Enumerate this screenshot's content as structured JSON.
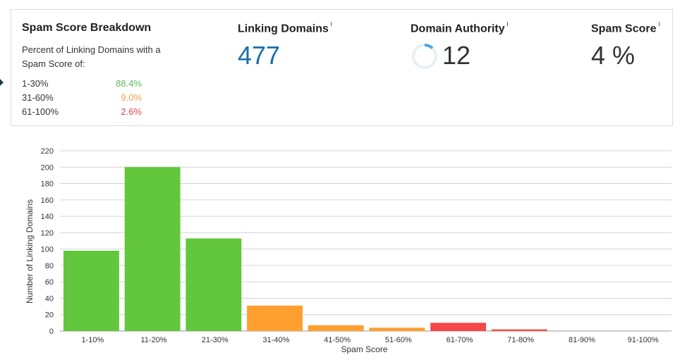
{
  "summary": {
    "title": "Spam Score Breakdown",
    "subtitle": "Percent of Linking Domains with a Spam Score of:",
    "breakdown": [
      {
        "label": "1-30%",
        "value": "88.4%",
        "color": "#5cb85c"
      },
      {
        "label": "31-60%",
        "value": "9.0%",
        "color": "#f0a04b"
      },
      {
        "label": "61-100%",
        "value": "2.6%",
        "color": "#e0424a"
      }
    ]
  },
  "metrics": {
    "linking_domains": {
      "label": "Linking Domains",
      "info": "i",
      "value": "477",
      "color": "#1a6fa8"
    },
    "domain_authority": {
      "label": "Domain Authority",
      "info": "i",
      "value": "12",
      "ring_fraction": 0.12,
      "ring_color": "#4aa8e0",
      "ring_track": "#e6f0f5"
    },
    "spam_score": {
      "label": "Spam Score",
      "info": "i",
      "value": "4 %"
    }
  },
  "chart_data": {
    "type": "bar",
    "xlabel": "Spam Score",
    "ylabel": "Number of Linking Domains",
    "ylim": [
      0,
      220
    ],
    "yticks": [
      0,
      20,
      40,
      60,
      80,
      100,
      120,
      140,
      160,
      180,
      200,
      220
    ],
    "grid": true,
    "categories": [
      "1-10%",
      "11-20%",
      "21-30%",
      "31-40%",
      "41-50%",
      "51-60%",
      "61-70%",
      "71-80%",
      "81-90%",
      "91-100%"
    ],
    "values": [
      98,
      200,
      113,
      31,
      7,
      4,
      10,
      2,
      0,
      0
    ],
    "colors": [
      "#62c73c",
      "#62c73c",
      "#62c73c",
      "#ff9f2f",
      "#ff9f2f",
      "#ff9f2f",
      "#f54848",
      "#f54848",
      "#f54848",
      "#f54848"
    ]
  }
}
